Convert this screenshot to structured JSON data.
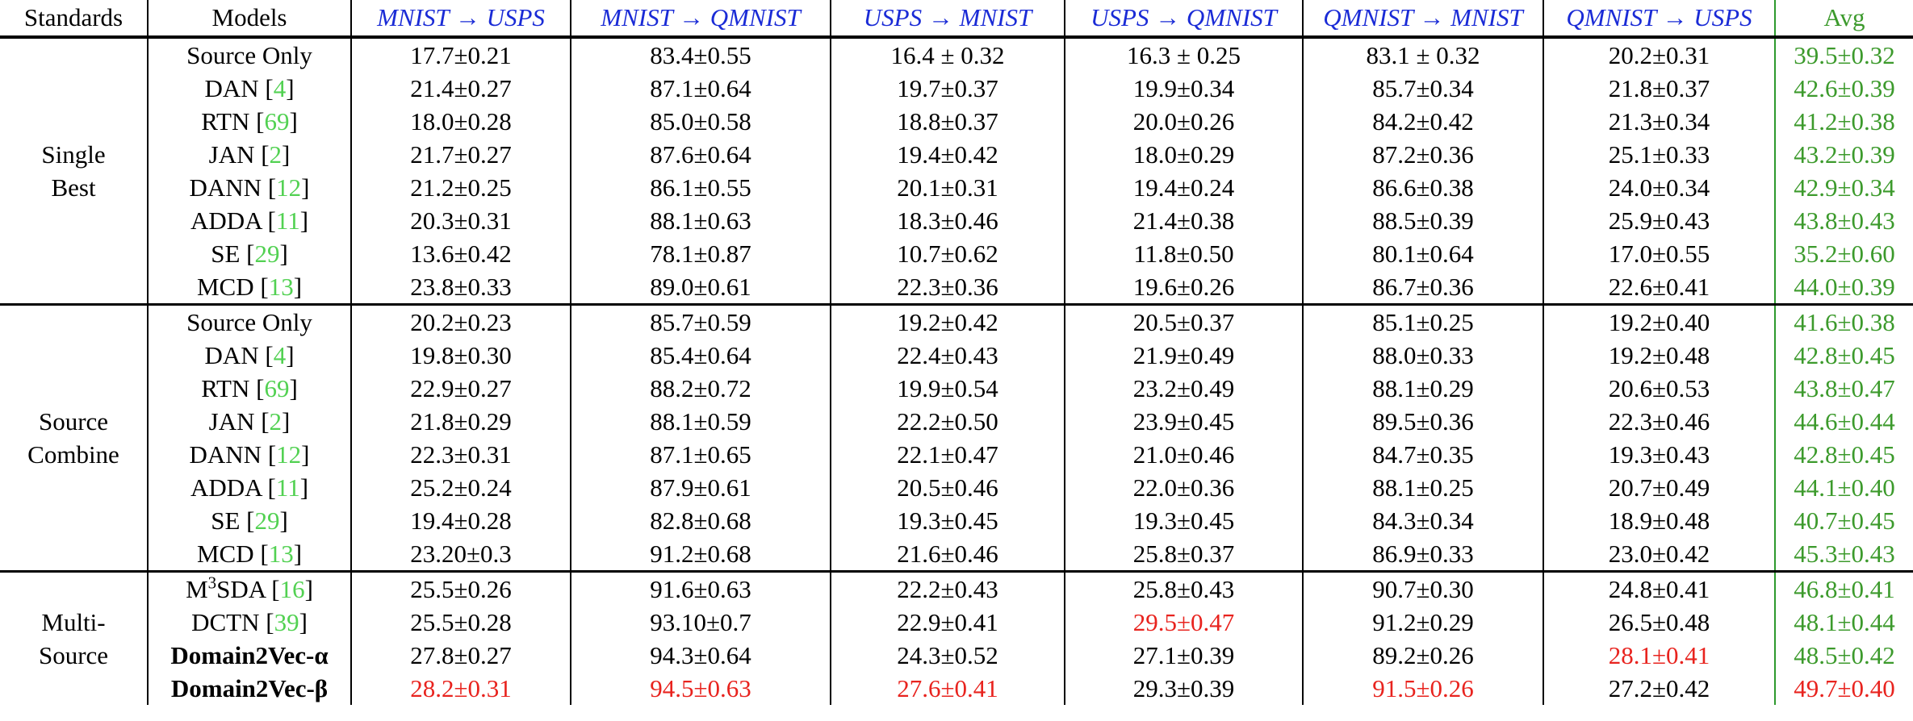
{
  "header": {
    "standards": "Standards",
    "models": "Models",
    "tasks": [
      "MNIST → USPS",
      "MNIST → QMNIST",
      "USPS → MNIST",
      "USPS → QMNIST",
      "QMNIST → MNIST",
      "QMNIST → USPS"
    ],
    "avg": "Avg"
  },
  "groups": [
    {
      "standard_lines": [
        "Single",
        "Best"
      ],
      "rows": [
        {
          "model": "Source Only",
          "ref": "",
          "cells": [
            "17.7±0.21",
            "83.4±0.55",
            "16.4 ± 0.32",
            "16.3 ± 0.25",
            "83.1 ± 0.32",
            "20.2±0.31"
          ],
          "avg": "39.5±0.32"
        },
        {
          "model": "DAN",
          "ref": "4",
          "cells": [
            "21.4±0.27",
            "87.1±0.64",
            "19.7±0.37",
            "19.9±0.34",
            "85.7±0.34",
            "21.8±0.37"
          ],
          "avg": "42.6±0.39"
        },
        {
          "model": "RTN",
          "ref": "69",
          "cells": [
            "18.0±0.28",
            "85.0±0.58",
            "18.8±0.37",
            "20.0±0.26",
            "84.2±0.42",
            "21.3±0.34"
          ],
          "avg": "41.2±0.38"
        },
        {
          "model": "JAN",
          "ref": "2",
          "cells": [
            "21.7±0.27",
            "87.6±0.64",
            "19.4±0.42",
            "18.0±0.29",
            "87.2±0.36",
            "25.1±0.33"
          ],
          "avg": "43.2±0.39"
        },
        {
          "model": "DANN",
          "ref": "12",
          "cells": [
            "21.2±0.25",
            "86.1±0.55",
            "20.1±0.31",
            "19.4±0.24",
            "86.6±0.38",
            "24.0±0.34"
          ],
          "avg": "42.9±0.34"
        },
        {
          "model": "ADDA",
          "ref": "11",
          "cells": [
            "20.3±0.31",
            "88.1±0.63",
            "18.3±0.46",
            "21.4±0.38",
            "88.5±0.39",
            "25.9±0.43"
          ],
          "avg": "43.8±0.43"
        },
        {
          "model": "SE",
          "ref": "29",
          "cells": [
            "13.6±0.42",
            "78.1±0.87",
            "10.7±0.62",
            "11.8±0.50",
            "80.1±0.64",
            "17.0±0.55"
          ],
          "avg": "35.2±0.60"
        },
        {
          "model": "MCD",
          "ref": "13",
          "cells": [
            "23.8±0.33",
            "89.0±0.61",
            "22.3±0.36",
            "19.6±0.26",
            "86.7±0.36",
            "22.6±0.41"
          ],
          "avg": "44.0±0.39"
        }
      ]
    },
    {
      "standard_lines": [
        "Source",
        "Combine"
      ],
      "rows": [
        {
          "model": "Source Only",
          "ref": "",
          "cells": [
            "20.2±0.23",
            "85.7±0.59",
            "19.2±0.42",
            "20.5±0.37",
            "85.1±0.25",
            "19.2±0.40"
          ],
          "avg": "41.6±0.38"
        },
        {
          "model": "DAN",
          "ref": "4",
          "cells": [
            "19.8±0.30",
            "85.4±0.64",
            "22.4±0.43",
            "21.9±0.49",
            "88.0±0.33",
            "19.2±0.48"
          ],
          "avg": "42.8±0.45"
        },
        {
          "model": "RTN",
          "ref": "69",
          "cells": [
            "22.9±0.27",
            "88.2±0.72",
            "19.9±0.54",
            "23.2±0.49",
            "88.1±0.29",
            "20.6±0.53"
          ],
          "avg": "43.8±0.47"
        },
        {
          "model": "JAN",
          "ref": "2",
          "cells": [
            "21.8±0.29",
            "88.1±0.59",
            "22.2±0.50",
            "23.9±0.45",
            "89.5±0.36",
            "22.3±0.46"
          ],
          "avg": "44.6±0.44"
        },
        {
          "model": "DANN",
          "ref": "12",
          "cells": [
            "22.3±0.31",
            "87.1±0.65",
            "22.1±0.47",
            "21.0±0.46",
            "84.7±0.35",
            "19.3±0.43"
          ],
          "avg": "42.8±0.45"
        },
        {
          "model": "ADDA",
          "ref": "11",
          "cells": [
            "25.2±0.24",
            "87.9±0.61",
            "20.5±0.46",
            "22.0±0.36",
            "88.1±0.25",
            "20.7±0.49"
          ],
          "avg": "44.1±0.40"
        },
        {
          "model": "SE",
          "ref": "29",
          "cells": [
            "19.4±0.28",
            "82.8±0.68",
            "19.3±0.45",
            "19.3±0.45",
            "84.3±0.34",
            "18.9±0.48"
          ],
          "avg": "40.7±0.45"
        },
        {
          "model": "MCD",
          "ref": "13",
          "cells": [
            "23.20±0.3",
            "91.2±0.68",
            "21.6±0.46",
            "25.8±0.37",
            "86.9±0.33",
            "23.0±0.42"
          ],
          "avg": "45.3±0.43"
        }
      ]
    },
    {
      "standard_lines": [
        "Multi-",
        "Source"
      ],
      "rows": [
        {
          "model": "M",
          "sup": "3",
          "model_suffix": "SDA",
          "ref": "16",
          "cells": [
            "25.5±0.26",
            "91.6±0.63",
            "22.2±0.43",
            "25.8±0.43",
            "90.7±0.30",
            "24.8±0.41"
          ],
          "avg": "46.8±0.41"
        },
        {
          "model": "DCTN",
          "ref": "39",
          "cells": [
            "25.5±0.28",
            "93.10±0.7",
            "22.9±0.41",
            "29.5±0.47",
            "91.2±0.29",
            "26.5±0.48"
          ],
          "avg": "48.1±0.44"
        },
        {
          "model": "Domain2Vec-α",
          "ref": "",
          "bold": true,
          "cells": [
            "27.8±0.27",
            "94.3±0.64",
            "24.3±0.52",
            "27.1±0.39",
            "89.2±0.26",
            "28.1±0.41"
          ],
          "avg": "48.5±0.42"
        },
        {
          "model": "Domain2Vec-β",
          "ref": "",
          "bold": true,
          "cells": [
            "28.2±0.31",
            "94.5±0.63",
            "27.6±0.41",
            "29.3±0.39",
            "91.5±0.26",
            "27.2±0.42"
          ],
          "avg": "49.7±0.40"
        }
      ]
    }
  ],
  "highlight_best": [
    [
      2,
      1,
      3
    ],
    [
      2,
      2,
      5
    ],
    [
      2,
      3,
      0
    ],
    [
      2,
      3,
      1
    ],
    [
      2,
      3,
      2
    ],
    [
      2,
      3,
      4
    ],
    [
      2,
      3,
      6
    ]
  ],
  "colors": {
    "task_header": "#1a2bd6",
    "avg": "#3c9a2c",
    "best": "#e8231e",
    "reference": "#52d152",
    "rule": "#000000"
  }
}
